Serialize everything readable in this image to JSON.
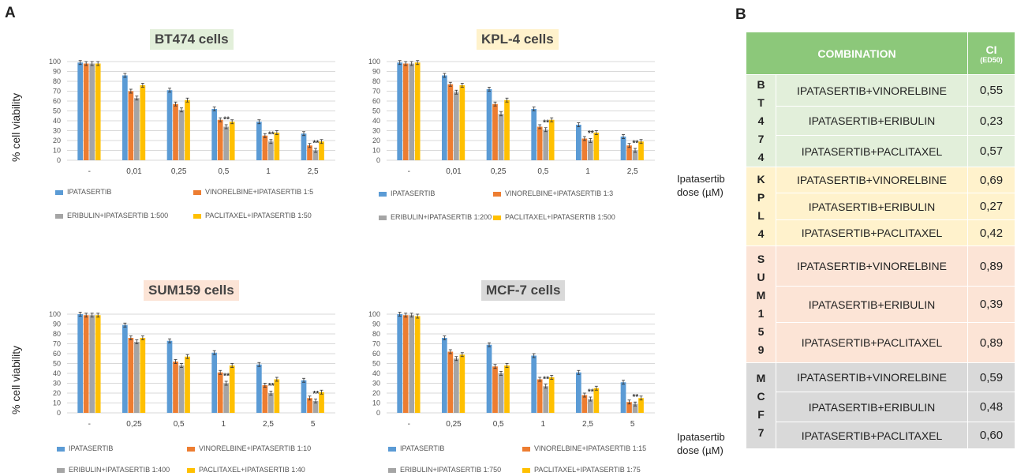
{
  "panel_a_label": "A",
  "panel_b_label": "B",
  "colors": {
    "ipatasertib": "#5b9bd5",
    "vinorelbine": "#ed7d31",
    "eribulin": "#a5a5a5",
    "paclitaxel": "#ffc000",
    "bt474": "#e2efda",
    "kpl4": "#fff2cc",
    "sum159": "#fce4d6",
    "mcf7": "#d9d9d9",
    "header": "#8cc87a"
  },
  "xaxis_title_line1": "Ipatasertib",
  "xaxis_title_line2": "dose (µM)",
  "chart_data": [
    {
      "type": "bar",
      "title": "BT474 cells",
      "ylabel": "% cell viability",
      "ylim": [
        0,
        100
      ],
      "yticks": [
        "0",
        "10",
        "20",
        "30",
        "40",
        "50",
        "60",
        "70",
        "80",
        "90",
        "100"
      ],
      "categories": [
        "-",
        "0,01",
        "0,25",
        "0,5",
        "1",
        "2,5"
      ],
      "annotations": [
        "",
        "",
        "",
        "**",
        "**",
        "**"
      ],
      "series": [
        {
          "name": "IPATASERTIB",
          "values": [
            99,
            86,
            71,
            52,
            39,
            27
          ]
        },
        {
          "name": "VINORELBINE+IPATASERTIB 1:5",
          "values": [
            98,
            70,
            57,
            41,
            25,
            15
          ]
        },
        {
          "name": "ERIBULIN+IPATASERTIB 1:500",
          "values": [
            98,
            63,
            51,
            34,
            19,
            10
          ]
        },
        {
          "name": "PACLITAXEL+IPATASERTIB 1:50",
          "values": [
            98,
            76,
            61,
            39,
            28,
            19
          ]
        }
      ]
    },
    {
      "type": "bar",
      "title": "KPL-4 cells",
      "ylabel": "",
      "ylim": [
        0,
        100
      ],
      "yticks": [
        "0",
        "10",
        "20",
        "30",
        "40",
        "50",
        "60",
        "70",
        "80",
        "90",
        "100"
      ],
      "categories": [
        "-",
        "0,01",
        "0,25",
        "0,5",
        "1",
        "2,5"
      ],
      "annotations": [
        "",
        "",
        "",
        "**",
        "**",
        "**"
      ],
      "series": [
        {
          "name": "IPATASERTIB",
          "values": [
            99,
            86,
            72,
            52,
            36,
            24
          ]
        },
        {
          "name": "VINORELBINE+IPATASERTIB 1:3",
          "values": [
            98,
            77,
            57,
            34,
            22,
            15
          ]
        },
        {
          "name": "ERIBULIN+IPATASERTIB 1:200",
          "values": [
            98,
            69,
            47,
            31,
            20,
            10
          ]
        },
        {
          "name": "PACLITAXEL+IPATASERTIB 1:500",
          "values": [
            99,
            76,
            61,
            41,
            28,
            19
          ]
        }
      ]
    },
    {
      "type": "bar",
      "title": "SUM159 cells",
      "ylabel": "% cell viability",
      "ylim": [
        0,
        100
      ],
      "yticks": [
        "0",
        "10",
        "20",
        "30",
        "40",
        "50",
        "60",
        "70",
        "80",
        "90",
        "100"
      ],
      "categories": [
        "-",
        "0,25",
        "0,5",
        "1",
        "2,5",
        "5"
      ],
      "annotations": [
        "",
        "",
        "",
        "**",
        "**",
        "**"
      ],
      "series": [
        {
          "name": "IPATASERTIB",
          "values": [
            100,
            89,
            73,
            61,
            49,
            33
          ]
        },
        {
          "name": "VINORELBINE+IPATASERTIB 1:10",
          "values": [
            99,
            76,
            52,
            41,
            28,
            15
          ]
        },
        {
          "name": "ERIBULIN+IPATASERTIB 1:400",
          "values": [
            99,
            72,
            48,
            30,
            20,
            12
          ]
        },
        {
          "name": "PACLITAXEL+IPATASERTIB 1:40",
          "values": [
            99,
            76,
            57,
            48,
            34,
            21
          ]
        }
      ]
    },
    {
      "type": "bar",
      "title": "MCF-7 cells",
      "ylabel": "",
      "ylim": [
        0,
        100
      ],
      "yticks": [
        "0",
        "10",
        "20",
        "30",
        "40",
        "50",
        "60",
        "70",
        "80",
        "90",
        "100"
      ],
      "categories": [
        "-",
        "0,25",
        "0,5",
        "1",
        "2,5",
        "5"
      ],
      "annotations": [
        "",
        "",
        "",
        "**",
        "**",
        "**"
      ],
      "series": [
        {
          "name": "IPATASERTIB",
          "values": [
            100,
            76,
            69,
            58,
            41,
            31
          ]
        },
        {
          "name": "VINORELBINE+IPATASERTIB 1:15",
          "values": [
            99,
            62,
            47,
            34,
            18,
            11
          ]
        },
        {
          "name": "ERIBULIN+IPATASERTIB 1:750",
          "values": [
            99,
            55,
            40,
            27,
            14,
            9
          ]
        },
        {
          "name": "PACLITAXEL+IPATASERTIB 1:75",
          "values": [
            98,
            59,
            48,
            36,
            25,
            15
          ]
        }
      ]
    }
  ],
  "ci_table": {
    "col_combination": "COMBINATION",
    "col_ci": "CI",
    "col_ci_sub": "(ED50)",
    "groups": [
      {
        "letters": [
          "B",
          "T",
          "4",
          "7",
          "4"
        ],
        "rows": [
          {
            "combination": "IPATASERTIB+VINORELBINE",
            "ci": "0,55"
          },
          {
            "combination": "IPATASERTIB+ERIBULIN",
            "ci": "0,23"
          },
          {
            "combination": "IPATASERTIB+PACLITAXEL",
            "ci": "0,57"
          }
        ]
      },
      {
        "letters": [
          "K",
          "P",
          "L",
          "4"
        ],
        "rows": [
          {
            "combination": "IPATASERTIB+VINORELBINE",
            "ci": "0,69"
          },
          {
            "combination": "IPATASERTIB+ERIBULIN",
            "ci": "0,27"
          },
          {
            "combination": "IPATASERTIB+PACLITAXEL",
            "ci": "0,42"
          }
        ]
      },
      {
        "letters": [
          "S",
          "U",
          "M",
          "1",
          "5",
          "9"
        ],
        "rows": [
          {
            "combination": "IPATASERTIB+VINORELBINE",
            "ci": "0,89"
          },
          {
            "combination": "IPATASERTIB+ERIBULIN",
            "ci": "0,39"
          },
          {
            "combination": "IPATASERTIB+PACLITAXEL",
            "ci": "0,89"
          }
        ]
      },
      {
        "letters": [
          "M",
          "C",
          "F",
          "7"
        ],
        "rows": [
          {
            "combination": "IPATASERTIB+VINORELBINE",
            "ci": "0,59"
          },
          {
            "combination": "IPATASERTIB+ERIBULIN",
            "ci": "0,48"
          },
          {
            "combination": "IPATASERTIB+PACLITAXEL",
            "ci": "0,60"
          }
        ]
      }
    ]
  }
}
